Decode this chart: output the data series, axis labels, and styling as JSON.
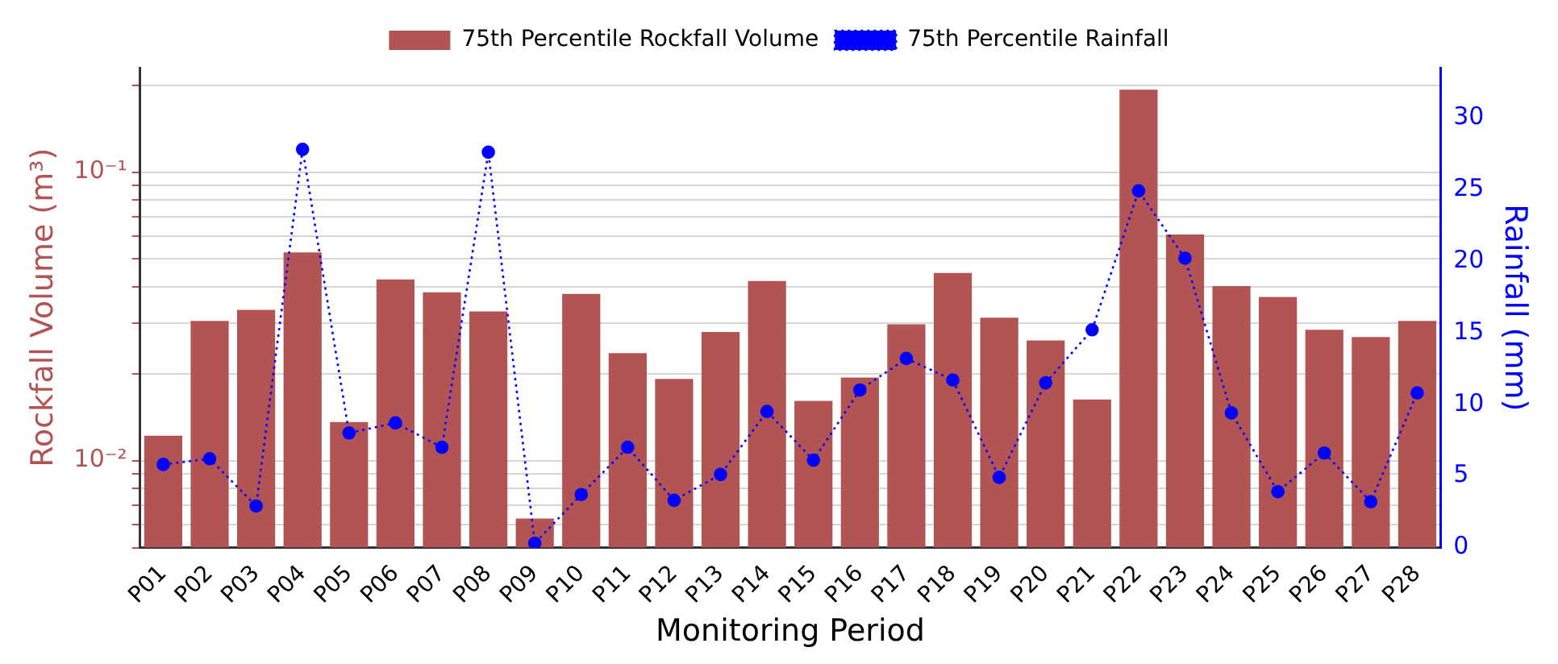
{
  "chart_data": {
    "type": "bar",
    "xlabel": "Monitoring Period",
    "ylabel": "Rockfall Volume (m³)",
    "y2label": "Rainfall (mm)",
    "categories": [
      "P01",
      "P02",
      "P03",
      "P04",
      "P05",
      "P06",
      "P07",
      "P08",
      "P09",
      "P10",
      "P11",
      "P12",
      "P13",
      "P14",
      "P15",
      "P16",
      "P17",
      "P18",
      "P19",
      "P20",
      "P21",
      "P22",
      "P23",
      "P24",
      "P25",
      "P26",
      "P27",
      "P28"
    ],
    "series": [
      {
        "name": "75th Percentile Rockfall Volume",
        "color": "#b35454",
        "values": [
          0.0122,
          0.0305,
          0.0333,
          0.0527,
          0.0136,
          0.0425,
          0.0383,
          0.0329,
          0.0063,
          0.0378,
          0.0236,
          0.0192,
          0.0279,
          0.0419,
          0.0161,
          0.0194,
          0.0297,
          0.0447,
          0.0313,
          0.0261,
          0.0163,
          0.193,
          0.0608,
          0.0403,
          0.0369,
          0.0284,
          0.0268,
          0.0305
        ]
      },
      {
        "name": "75th Percentile Rainfall",
        "type": "line",
        "axis": "y2",
        "color": "#0000ff",
        "marker": "circle",
        "line_style": "dotted",
        "values": [
          5.8,
          6.2,
          2.9,
          27.8,
          8.0,
          8.7,
          7.0,
          27.6,
          0.3,
          3.7,
          7.0,
          3.3,
          5.1,
          9.5,
          6.1,
          11.0,
          13.2,
          11.7,
          4.9,
          11.5,
          15.2,
          24.9,
          20.2,
          9.4,
          3.9,
          6.6,
          3.2,
          10.8
        ]
      }
    ],
    "log": "y",
    "ylim": [
      0.005,
      0.23
    ],
    "yticks": [
      {
        "value": 0.005,
        "label": null
      },
      {
        "value": 0.006,
        "label": null
      },
      {
        "value": 0.007,
        "label": null
      },
      {
        "value": 0.008,
        "label": null
      },
      {
        "value": 0.009,
        "label": null
      },
      {
        "value": 0.01,
        "label": "10⁻²"
      },
      {
        "value": 0.02,
        "label": null
      },
      {
        "value": 0.03,
        "label": null
      },
      {
        "value": 0.04,
        "label": null
      },
      {
        "value": 0.05,
        "label": null
      },
      {
        "value": 0.06,
        "label": null
      },
      {
        "value": 0.07,
        "label": null
      },
      {
        "value": 0.08,
        "label": null
      },
      {
        "value": 0.09,
        "label": null
      },
      {
        "value": 0.1,
        "label": "10⁻¹"
      },
      {
        "value": 0.2,
        "label": null
      }
    ],
    "y2lim": [
      0,
      33.5
    ],
    "y2ticks": [
      0,
      5,
      10,
      15,
      20,
      25,
      30
    ],
    "grid": "y",
    "legend": "top"
  }
}
